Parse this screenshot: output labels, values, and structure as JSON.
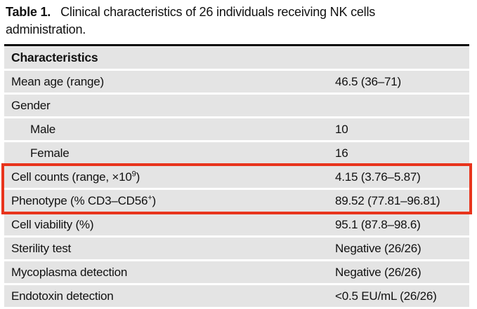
{
  "title": {
    "bold_label": "Table 1.",
    "line1": "Clinical characteristics of 26 individuals receiving NK cells",
    "line2": "administration."
  },
  "table": {
    "header": "Characteristics",
    "row_background": "#e4e4e4",
    "rows": [
      {
        "label": "Mean age (range)",
        "value": "46.5 (36–71)"
      },
      {
        "label": "Gender",
        "value": ""
      },
      {
        "label": "Male",
        "value": "10",
        "indented": true
      },
      {
        "label": "Female",
        "value": "16",
        "indented": true
      },
      {
        "label_pre": "Cell counts (range, ×10",
        "label_sup": "9",
        "label_post": ")",
        "value": "4.15 (3.76–5.87)",
        "highlighted": true
      },
      {
        "label_pre": "Phenotype (% CD3–CD56",
        "label_sup": "+",
        "label_post": ")",
        "value": "89.52 (77.81–96.81)",
        "highlighted": true
      },
      {
        "label": "Cell viability (%)",
        "value": "95.1 (87.8–98.6)"
      },
      {
        "label": "Sterility test",
        "value": "Negative (26/26)"
      },
      {
        "label": "Mycoplasma detection",
        "value": "Negative (26/26)"
      },
      {
        "label": "Endotoxin detection",
        "value": "<0.5 EU/mL (26/26)"
      }
    ]
  },
  "highlight": {
    "border_color": "#e8341c"
  }
}
